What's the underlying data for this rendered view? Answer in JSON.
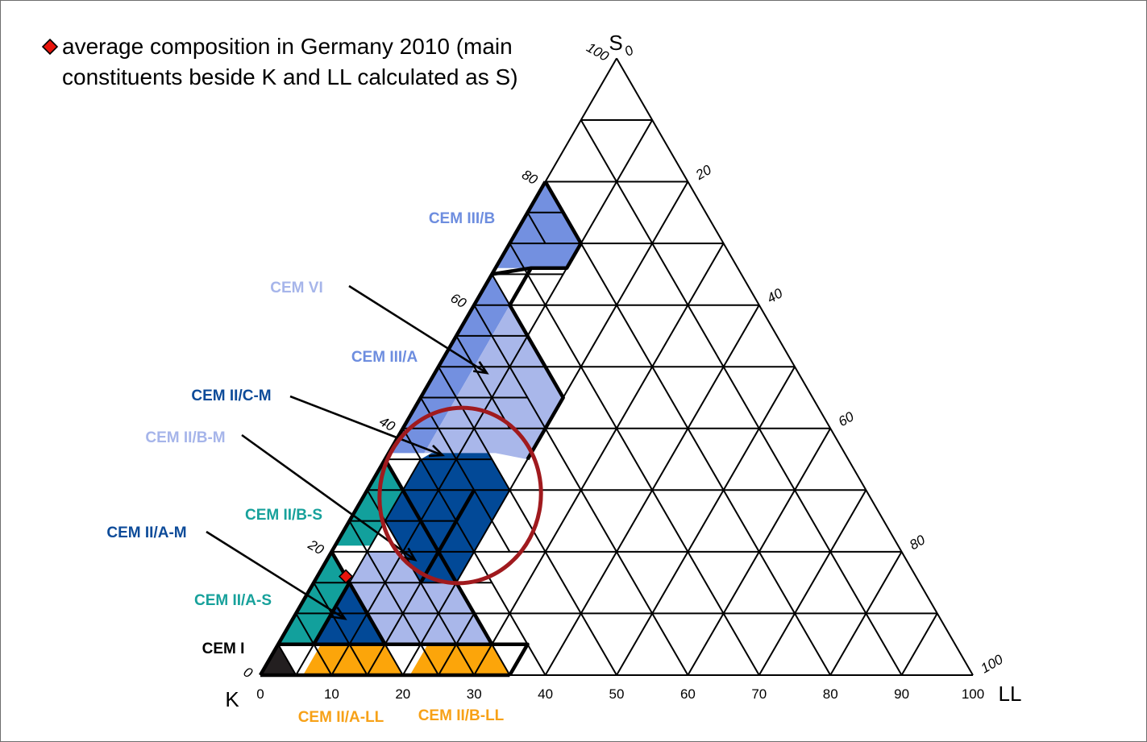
{
  "legend": {
    "line1": "average composition in Germany 2010 (main",
    "line2": "constituents beside K and LL calculated as S)",
    "marker_color": "#e8150c"
  },
  "axes": {
    "vertex_top": "S",
    "vertex_left": "K",
    "vertex_right": "LL",
    "bottom_ticks": [
      "0",
      "10",
      "20",
      "30",
      "40",
      "50",
      "60",
      "70",
      "80",
      "90",
      "100"
    ],
    "left_ticks": [
      {
        "value": 0,
        "label": "0"
      },
      {
        "value": 20,
        "label": "20"
      },
      {
        "value": 40,
        "label": "40"
      },
      {
        "value": 60,
        "label": "60"
      },
      {
        "value": 80,
        "label": "80"
      },
      {
        "value": 100,
        "label": "100"
      }
    ],
    "right_ticks": [
      {
        "value": 0,
        "label": "0"
      },
      {
        "value": 20,
        "label": "20"
      },
      {
        "value": 40,
        "label": "40"
      },
      {
        "value": 60,
        "label": "60"
      },
      {
        "value": 80,
        "label": "80"
      },
      {
        "value": 100,
        "label": "100"
      }
    ]
  },
  "zone_labels": {
    "cem_iii_b": "CEM III/B",
    "cem_vi": "CEM VI",
    "cem_iii_a": "CEM III/A",
    "cem_ii_c_m": "CEM II/C-M",
    "cem_ii_b_m": "CEM II/B-M",
    "cem_ii_b_s": "CEM II/B-S",
    "cem_ii_a_m": "CEM II/A-M",
    "cem_ii_a_s": "CEM II/A-S",
    "cem_i": "CEM I",
    "cem_ii_a_ll": "CEM II/A-LL",
    "cem_ii_b_ll": "CEM II/B-LL"
  },
  "colors": {
    "cem_iii": "#7390e0",
    "cem_vi_and_ii_b_m": "#a9b7ea",
    "cem_ii_c_m_and_a_m": "#024997",
    "cem_ii_s": "#12a09c",
    "cem_ii_ll": "#fca50a",
    "cem_i": "#231f20",
    "highlight_ring": "#a01a1e",
    "label_cem_iii": "#6d8ddf",
    "label_light": "#a6b5ea",
    "label_dark": "#0d4b99",
    "label_teal": "#17a19b",
    "label_orange": "#f7a117",
    "label_black": "#000000"
  },
  "average_point": {
    "S": 16,
    "LL": 4,
    "K": 80
  }
}
